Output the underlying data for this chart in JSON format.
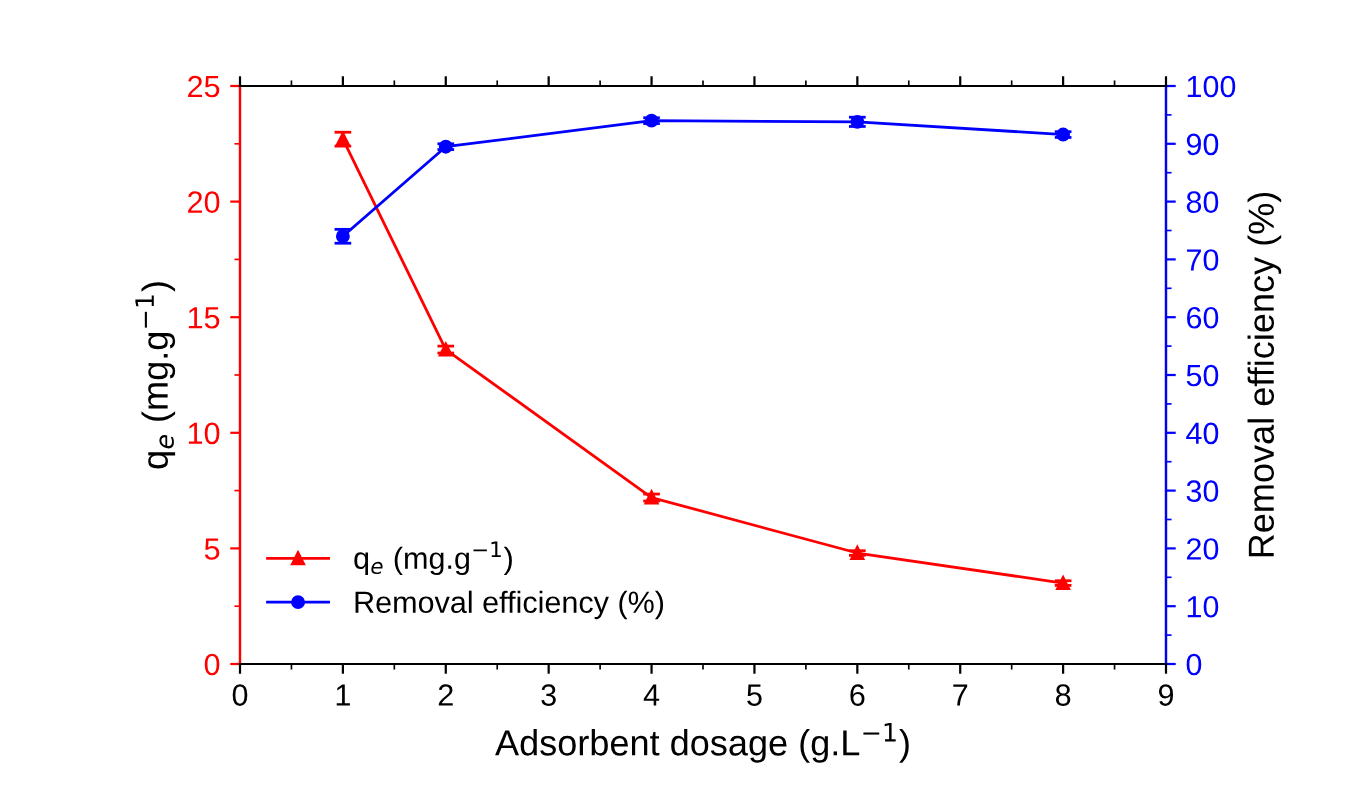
{
  "chart_data": {
    "type": "line",
    "xlabel": "Adsorbent dosage (g.L$^{−1}$)",
    "ylabel": "q$_{e}$ (mg.g$^{−1}$)",
    "y2label": "Removal efficiency (%)",
    "x": [
      1,
      2,
      4,
      6,
      8
    ],
    "series": [
      {
        "name": "q$_{e}$ (mg.g$^{−1}$)",
        "color": "#ff0000",
        "marker": "triangle",
        "values": [
          22.7,
          13.6,
          7.2,
          4.8,
          3.5
        ],
        "errors": [
          0.3,
          0.15,
          0.15,
          0.1,
          0.1
        ]
      },
      {
        "name": "Removal efficiency (%)",
        "color": "#0000ff",
        "marker": "circle",
        "axis": "y2",
        "values": [
          74,
          89.5,
          94,
          93.8,
          91.6
        ],
        "errors": [
          1.2,
          0.5,
          0.5,
          0.8,
          0.5
        ]
      }
    ],
    "xlim": [
      0,
      9
    ],
    "xticks": [
      0,
      1,
      2,
      3,
      4,
      5,
      6,
      7,
      8,
      9
    ],
    "ylim": [
      0,
      25
    ],
    "yticks": [
      0,
      5,
      10,
      15,
      20,
      25
    ],
    "y2lim": [
      0,
      100
    ],
    "y2ticks": [
      0,
      10,
      20,
      30,
      40,
      50,
      60,
      70,
      80,
      90,
      100
    ],
    "legend": "bottom left",
    "grid": false,
    "line_style": "solid"
  }
}
